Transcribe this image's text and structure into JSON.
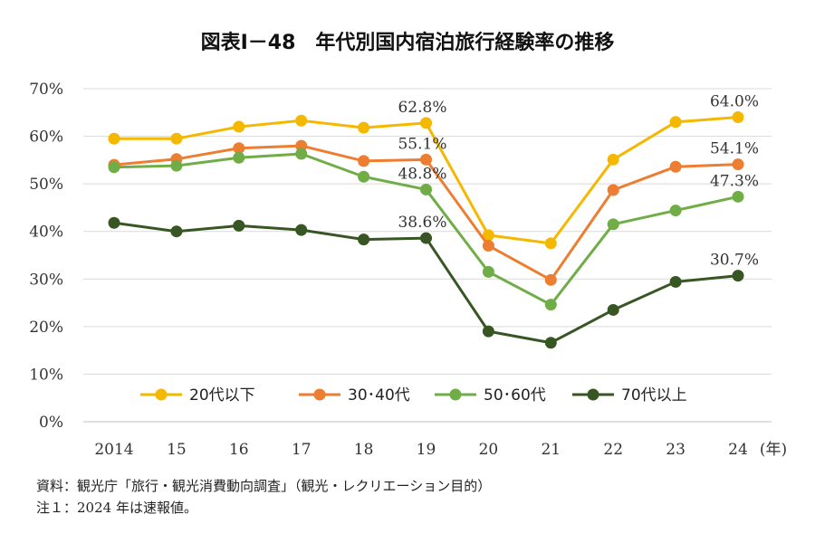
{
  "chart_data": {
    "type": "line",
    "title": "図表Ⅰ－48　年代別国内宿泊旅行経験率の推移",
    "categories": [
      "2014",
      "15",
      "16",
      "17",
      "18",
      "19",
      "20",
      "21",
      "22",
      "23",
      "24"
    ],
    "x_unit": "(年)",
    "y_ticks": [
      "0%",
      "10%",
      "20%",
      "30%",
      "40%",
      "50%",
      "60%",
      "70%"
    ],
    "ylim": [
      0,
      70
    ],
    "grid": true,
    "legend_position": "bottom-inside",
    "series": [
      {
        "name": "20代以下",
        "color": "#f5b800",
        "values": [
          59.5,
          59.5,
          62.0,
          63.3,
          61.8,
          62.8,
          39.2,
          37.5,
          55.1,
          63.0,
          64.0
        ]
      },
      {
        "name": "30･40代",
        "color": "#ed7d31",
        "values": [
          54.0,
          55.2,
          57.5,
          58.0,
          54.8,
          55.1,
          37.0,
          29.8,
          48.7,
          53.6,
          54.1
        ]
      },
      {
        "name": "50･60代",
        "color": "#70ad47",
        "values": [
          53.5,
          53.8,
          55.5,
          56.3,
          51.5,
          48.8,
          31.5,
          24.6,
          41.5,
          44.4,
          47.3
        ]
      },
      {
        "name": "70代以上",
        "color": "#375623",
        "values": [
          41.8,
          40.0,
          41.2,
          40.3,
          38.3,
          38.6,
          19.0,
          16.6,
          23.5,
          29.4,
          30.7
        ]
      }
    ],
    "annotations": [
      {
        "series": 0,
        "index": 5,
        "text": "62.8%"
      },
      {
        "series": 1,
        "index": 5,
        "text": "55.1%"
      },
      {
        "series": 2,
        "index": 5,
        "text": "48.8%"
      },
      {
        "series": 3,
        "index": 5,
        "text": "38.6%"
      },
      {
        "series": 0,
        "index": 10,
        "text": "64.0%"
      },
      {
        "series": 1,
        "index": 10,
        "text": "54.1%"
      },
      {
        "series": 2,
        "index": 10,
        "text": "47.3%"
      },
      {
        "series": 3,
        "index": 10,
        "text": "30.7%"
      }
    ]
  },
  "notes": {
    "source": "資料：観光庁「旅行・観光消費動向調査」（観光・レクリエーション目的）",
    "note1": "注１：2024 年は速報値。"
  }
}
